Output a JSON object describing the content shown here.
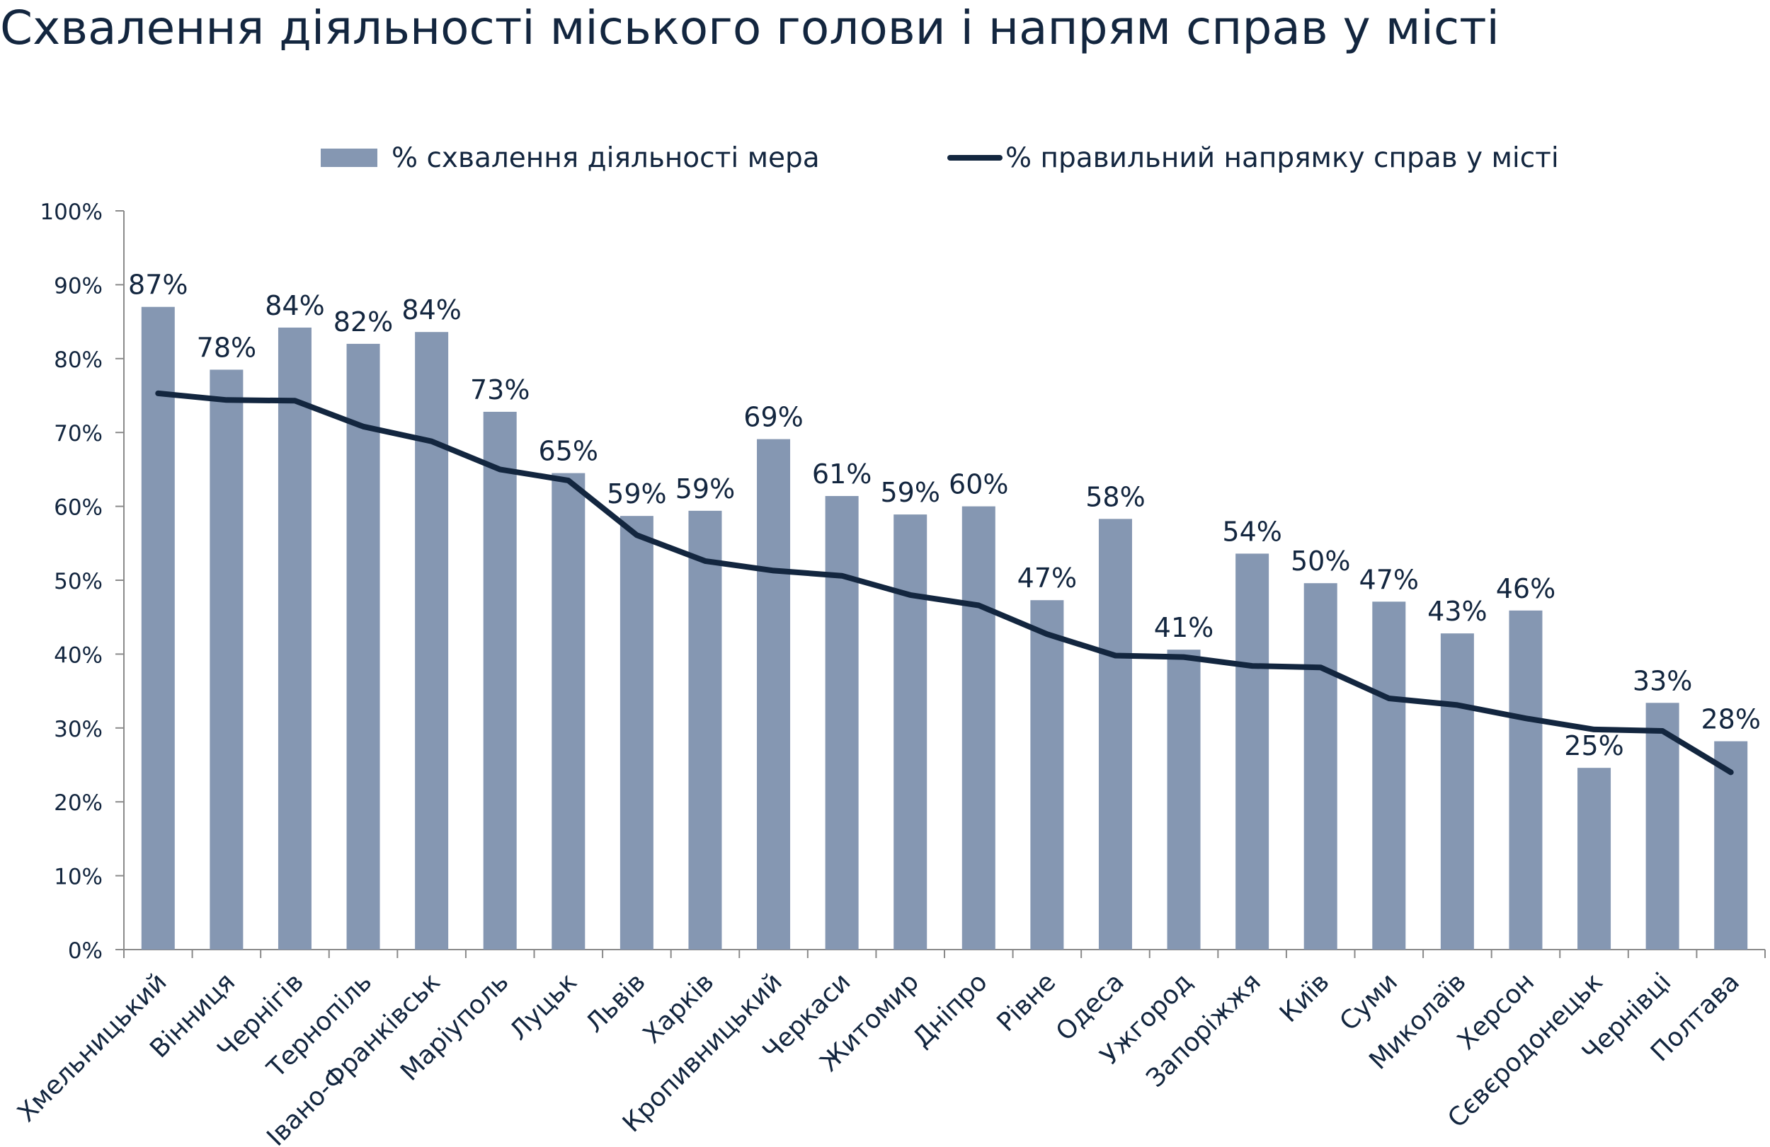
{
  "chart_data": {
    "type": "bar",
    "title": "Схвалення діяльності міського голови і напрям справ у місті",
    "categories": [
      "Хмельницький",
      "Вінниця",
      "Чернігів",
      "Тернопіль",
      "Івано-Франківськ",
      "Маріуполь",
      "Луцьк",
      "Львів",
      "Харків",
      "Кропивницький",
      "Черкаси",
      "Житомир",
      "Дніпро",
      "Рівне",
      "Одеса",
      "Ужгород",
      "Запоріжжя",
      "Київ",
      "Суми",
      "Миколаїв",
      "Херсон",
      "Сєвєродонецьк",
      "Чернівці",
      "Полтава"
    ],
    "series": [
      {
        "name": "% схвалення діяльності мера",
        "type": "bar",
        "color": "#8597b2",
        "values": [
          87,
          78.5,
          84.2,
          82,
          83.6,
          72.8,
          64.5,
          58.7,
          59.4,
          69.1,
          61.4,
          58.9,
          60,
          47.3,
          58.3,
          40.6,
          53.6,
          49.6,
          47.1,
          42.8,
          45.9,
          24.6,
          33.4,
          28.2
        ],
        "data_labels": [
          "87%",
          "78%",
          "84%",
          "82%",
          "84%",
          "73%",
          "65%",
          "59%",
          "59%",
          "69%",
          "61%",
          "59%",
          "60%",
          "47%",
          "58%",
          "41%",
          "54%",
          "50%",
          "47%",
          "43%",
          "46%",
          "25%",
          "33%",
          "28%"
        ]
      },
      {
        "name": "% правильний напрямку справ у місті",
        "type": "line",
        "color": "#13263f",
        "values": [
          75.3,
          74.4,
          74.3,
          70.8,
          68.8,
          65,
          63.5,
          56.1,
          52.6,
          51.3,
          50.6,
          48,
          46.6,
          42.7,
          39.8,
          39.6,
          38.4,
          38.2,
          34,
          33.1,
          31.3,
          29.8,
          29.6,
          24
        ]
      }
    ],
    "ylim": [
      0,
      100
    ],
    "yticks": [
      "0%",
      "10%",
      "20%",
      "30%",
      "40%",
      "50%",
      "60%",
      "70%",
      "80%",
      "90%",
      "100%"
    ],
    "grid": false,
    "legend_position": "top"
  }
}
